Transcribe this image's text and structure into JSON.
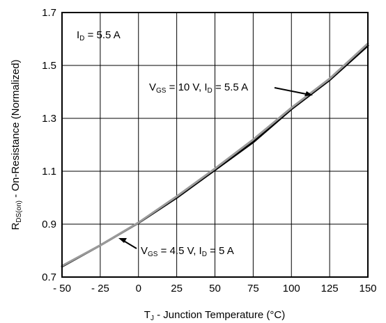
{
  "chart_data": {
    "type": "line",
    "xlabel": "T",
    "xlabel_sub": "J",
    "xlabel_rest": " - Junction Temperature (°C)",
    "ylabel": "R",
    "ylabel_sub": "DS(on)",
    "ylabel_rest": " - On-Resistance (Normalized)",
    "xlim": [
      -50,
      150
    ],
    "ylim": [
      0.7,
      1.7
    ],
    "xticks": [
      -50,
      -25,
      0,
      25,
      50,
      75,
      100,
      125,
      150
    ],
    "xtick_labels": [
      "- 50",
      "- 25",
      "0",
      "25",
      "50",
      "75",
      "100",
      "125",
      "150"
    ],
    "yticks": [
      0.7,
      0.9,
      1.1,
      1.3,
      1.5,
      1.7
    ],
    "ytick_labels": [
      "0.7",
      "0.9",
      "1.1",
      "1.3",
      "1.5",
      "1.7"
    ],
    "grid": true,
    "series": [
      {
        "name": "V_GS = 10 V, I_D = 5.5 A",
        "color": "#000000",
        "x": [
          -50,
          -25,
          0,
          25,
          50,
          75,
          100,
          125,
          150
        ],
        "y": [
          0.74,
          0.82,
          0.905,
          1.0,
          1.105,
          1.21,
          1.335,
          1.445,
          1.575
        ]
      },
      {
        "name": "V_GS = 4.5 V, I_D = 5 A",
        "color": "#9a9a9a",
        "x": [
          -50,
          -25,
          0,
          25,
          50,
          75,
          100,
          125,
          150
        ],
        "y": [
          0.742,
          0.82,
          0.906,
          1.005,
          1.11,
          1.22,
          1.34,
          1.45,
          1.583
        ]
      }
    ],
    "annotations": [
      {
        "main": "I",
        "sub": "D",
        "rest": " = 5.5 A"
      },
      {
        "parts": [
          "V",
          "GS",
          " = 10 V, I",
          "D",
          " = 5.5 A"
        ]
      },
      {
        "parts": [
          "V",
          "GS",
          " = 4.5 V, I",
          "D",
          " = 5 A"
        ]
      }
    ]
  }
}
